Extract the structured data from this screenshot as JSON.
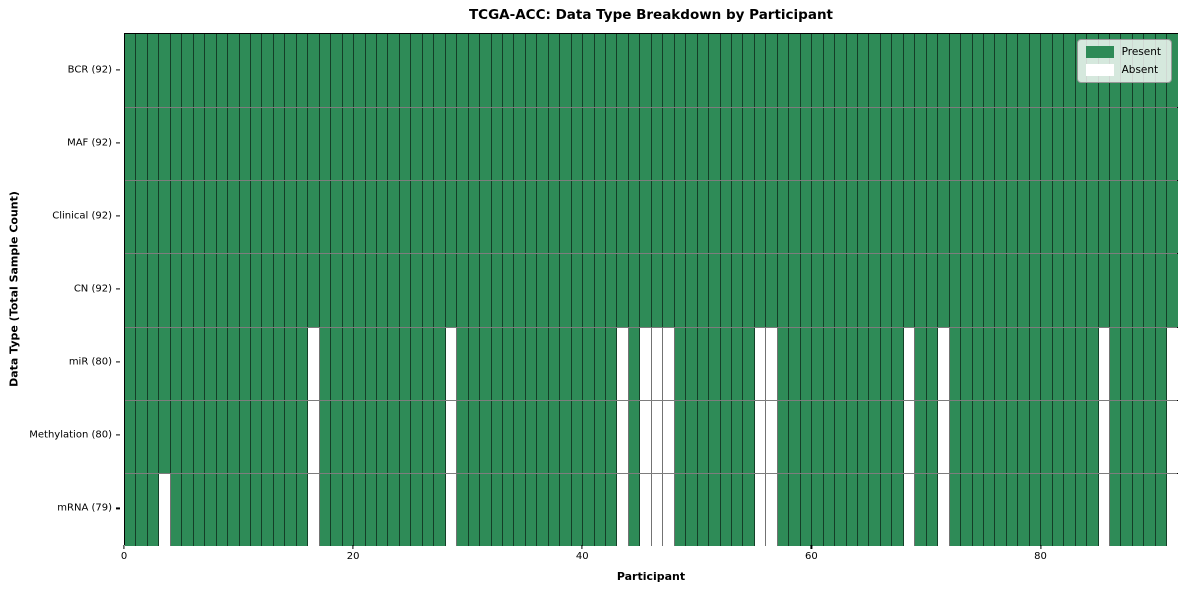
{
  "chart_data": {
    "type": "heatmap",
    "title": "TCGA-ACC: Data Type Breakdown by Participant",
    "xlabel": "Participant",
    "ylabel": "Data Type (Total Sample Count)",
    "x_ticks": [
      0,
      20,
      40,
      60,
      80
    ],
    "x_range": [
      0,
      92
    ],
    "n_participants": 92,
    "colors": {
      "present": "#2e8b57",
      "absent": "#ffffff",
      "cell_edge": "rgba(0,0,0,0.55)",
      "row_edge": "#7d7d7d"
    },
    "legend": [
      {
        "label": "Present",
        "color": "#2e8b57"
      },
      {
        "label": "Absent",
        "color": "#ffffff"
      }
    ],
    "legend_position": "upper right",
    "grid": true,
    "rows": [
      {
        "label": "BCR (92)",
        "data_type": "BCR",
        "present_count": 92,
        "absent_participants": []
      },
      {
        "label": "MAF (92)",
        "data_type": "MAF",
        "present_count": 92,
        "absent_participants": []
      },
      {
        "label": "Clinical (92)",
        "data_type": "Clinical",
        "present_count": 92,
        "absent_participants": []
      },
      {
        "label": "CN (92)",
        "data_type": "CN",
        "present_count": 92,
        "absent_participants": []
      },
      {
        "label": "miR (80)",
        "data_type": "miR",
        "present_count": 80,
        "absent_participants": [
          16,
          28,
          43,
          45,
          46,
          47,
          55,
          56,
          68,
          71,
          85,
          91
        ]
      },
      {
        "label": "Methylation (80)",
        "data_type": "Methylation",
        "present_count": 80,
        "absent_participants": [
          16,
          28,
          43,
          45,
          46,
          47,
          55,
          56,
          68,
          71,
          85,
          91
        ]
      },
      {
        "label": "mRNA (79)",
        "data_type": "mRNA",
        "present_count": 79,
        "absent_participants": [
          3,
          16,
          28,
          43,
          45,
          46,
          47,
          55,
          56,
          68,
          71,
          85,
          91
        ]
      }
    ]
  }
}
